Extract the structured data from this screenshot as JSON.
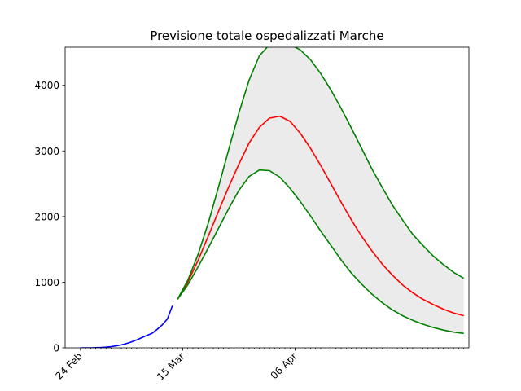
{
  "chart_data": {
    "type": "line",
    "title": "Previsione totale ospedalizzati Marche",
    "xlabel": "",
    "ylabel": "",
    "x_start": "2020-02-21",
    "x_end": "2020-05-10",
    "ylim": [
      0,
      4580
    ],
    "y_ticks": [
      0,
      1000,
      2000,
      3000,
      4000
    ],
    "x_tick_labels": [
      {
        "date": "2020-02-24",
        "label": "24 Feb"
      },
      {
        "date": "2020-03-15",
        "label": "15 Mar"
      },
      {
        "date": "2020-04-06",
        "label": "06 Apr"
      }
    ],
    "grid": false,
    "series": [
      {
        "color": "#0000ff",
        "x": [
          "2020-02-24",
          "2020-02-25",
          "2020-02-26",
          "2020-02-27",
          "2020-02-28",
          "2020-02-29",
          "2020-03-01",
          "2020-03-02",
          "2020-03-03",
          "2020-03-04",
          "2020-03-05",
          "2020-03-06",
          "2020-03-07",
          "2020-03-08",
          "2020-03-09",
          "2020-03-10",
          "2020-03-11",
          "2020-03-12",
          "2020-03-13"
        ],
        "values": [
          0,
          0,
          0,
          2,
          5,
          10,
          18,
          30,
          45,
          65,
          90,
          120,
          155,
          190,
          220,
          280,
          350,
          440,
          640
        ]
      },
      {
        "color": "#ff0000",
        "x": [
          "2020-03-14",
          "2020-03-16",
          "2020-03-18",
          "2020-03-20",
          "2020-03-22",
          "2020-03-24",
          "2020-03-26",
          "2020-03-28",
          "2020-03-30",
          "2020-04-01",
          "2020-04-03",
          "2020-04-05",
          "2020-04-07",
          "2020-04-09",
          "2020-04-11",
          "2020-04-13",
          "2020-04-15",
          "2020-04-17",
          "2020-04-19",
          "2020-04-21",
          "2020-04-23",
          "2020-04-25",
          "2020-04-27",
          "2020-04-29",
          "2020-05-01",
          "2020-05-03",
          "2020-05-05",
          "2020-05-07",
          "2020-05-09"
        ],
        "values": [
          740,
          1000,
          1330,
          1700,
          2080,
          2450,
          2800,
          3120,
          3360,
          3500,
          3530,
          3450,
          3270,
          3040,
          2780,
          2500,
          2220,
          1950,
          1700,
          1480,
          1280,
          1110,
          960,
          840,
          740,
          660,
          590,
          530,
          490
        ]
      },
      {
        "color": "#008000",
        "x": [
          "2020-03-14",
          "2020-03-16",
          "2020-03-18",
          "2020-03-20",
          "2020-03-22",
          "2020-03-24",
          "2020-03-26",
          "2020-03-28",
          "2020-03-30",
          "2020-04-01",
          "2020-04-03",
          "2020-04-05",
          "2020-04-07",
          "2020-04-09",
          "2020-04-11",
          "2020-04-13",
          "2020-04-15",
          "2020-04-17",
          "2020-04-19",
          "2020-04-21",
          "2020-04-23",
          "2020-04-25",
          "2020-04-27",
          "2020-04-29",
          "2020-05-01",
          "2020-05-03",
          "2020-05-05",
          "2020-05-07",
          "2020-05-09"
        ],
        "values": [
          740,
          1030,
          1420,
          1900,
          2450,
          3020,
          3580,
          4080,
          4450,
          4620,
          4650,
          4620,
          4540,
          4390,
          4180,
          3930,
          3650,
          3350,
          3040,
          2730,
          2450,
          2180,
          1950,
          1730,
          1560,
          1400,
          1270,
          1150,
          1060
        ]
      },
      {
        "color": "#008000",
        "x": [
          "2020-03-14",
          "2020-03-16",
          "2020-03-18",
          "2020-03-20",
          "2020-03-22",
          "2020-03-24",
          "2020-03-26",
          "2020-03-28",
          "2020-03-30",
          "2020-04-01",
          "2020-04-03",
          "2020-04-05",
          "2020-04-07",
          "2020-04-09",
          "2020-04-11",
          "2020-04-13",
          "2020-04-15",
          "2020-04-17",
          "2020-04-19",
          "2020-04-21",
          "2020-04-23",
          "2020-04-25",
          "2020-04-27",
          "2020-04-29",
          "2020-05-01",
          "2020-05-03",
          "2020-05-05",
          "2020-05-07",
          "2020-05-09"
        ],
        "values": [
          740,
          960,
          1230,
          1520,
          1820,
          2120,
          2400,
          2610,
          2710,
          2700,
          2600,
          2430,
          2230,
          2010,
          1780,
          1560,
          1340,
          1140,
          970,
          820,
          690,
          580,
          490,
          420,
          360,
          310,
          270,
          240,
          220
        ]
      }
    ],
    "band": {
      "color": "#ebebeb",
      "between": [
        2,
        3
      ]
    }
  }
}
